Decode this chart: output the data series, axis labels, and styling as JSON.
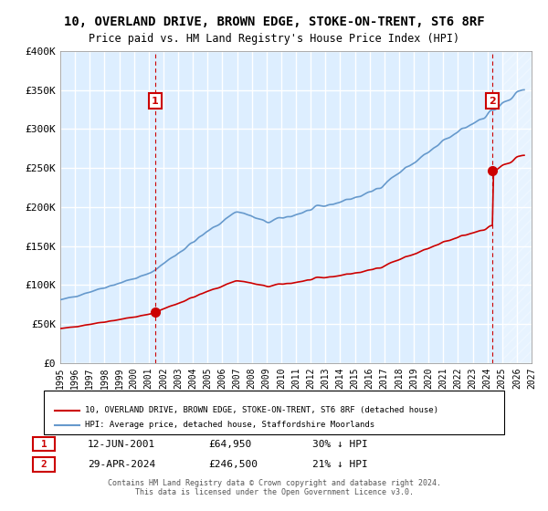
{
  "title": "10, OVERLAND DRIVE, BROWN EDGE, STOKE-ON-TRENT, ST6 8RF",
  "subtitle": "Price paid vs. HM Land Registry's House Price Index (HPI)",
  "legend_entry1": "10, OVERLAND DRIVE, BROWN EDGE, STOKE-ON-TRENT, ST6 8RF (detached house)",
  "legend_entry2": "HPI: Average price, detached house, Staffordshire Moorlands",
  "annotation1_label": "1",
  "annotation1_date": "12-JUN-2001",
  "annotation1_price": "£64,950",
  "annotation1_hpi": "30% ↓ HPI",
  "annotation2_label": "2",
  "annotation2_date": "29-APR-2024",
  "annotation2_price": "£246,500",
  "annotation2_hpi": "21% ↓ HPI",
  "sale1_date_num": 2001.45,
  "sale1_price": 64950,
  "sale2_date_num": 2024.33,
  "sale2_price": 246500,
  "xmin": 1995.0,
  "xmax": 2027.0,
  "ymin": 0,
  "ymax": 400000,
  "yticks": [
    0,
    50000,
    100000,
    150000,
    200000,
    250000,
    300000,
    350000,
    400000
  ],
  "ytick_labels": [
    "£0",
    "£50K",
    "£100K",
    "£150K",
    "£200K",
    "£250K",
    "£300K",
    "£350K",
    "£400K"
  ],
  "xticks": [
    1995,
    1996,
    1997,
    1998,
    1999,
    2000,
    2001,
    2002,
    2003,
    2004,
    2005,
    2006,
    2007,
    2008,
    2009,
    2010,
    2011,
    2012,
    2013,
    2014,
    2015,
    2016,
    2017,
    2018,
    2019,
    2020,
    2021,
    2022,
    2023,
    2024,
    2025,
    2026,
    2027
  ],
  "property_color": "#cc0000",
  "hpi_color": "#6699cc",
  "background_color": "#ddeeff",
  "plot_bg_color": "#ddeeff",
  "grid_color": "#ffffff",
  "hatch_color": "#cccccc",
  "annotation_box_color": "#cc0000",
  "footer_text": "Contains HM Land Registry data © Crown copyright and database right 2024.\nThis data is licensed under the Open Government Licence v3.0."
}
